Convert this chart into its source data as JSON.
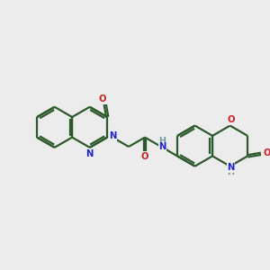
{
  "bg_color": "#ececec",
  "bond_color": "#2d5a2d",
  "N_color": "#2222cc",
  "O_color": "#cc2222",
  "H_color": "#6a9a9a",
  "lw": 1.6,
  "figsize": [
    3.0,
    3.0
  ],
  "dpi": 100,
  "xlim": [
    0,
    10
  ],
  "ylim": [
    0,
    10
  ]
}
